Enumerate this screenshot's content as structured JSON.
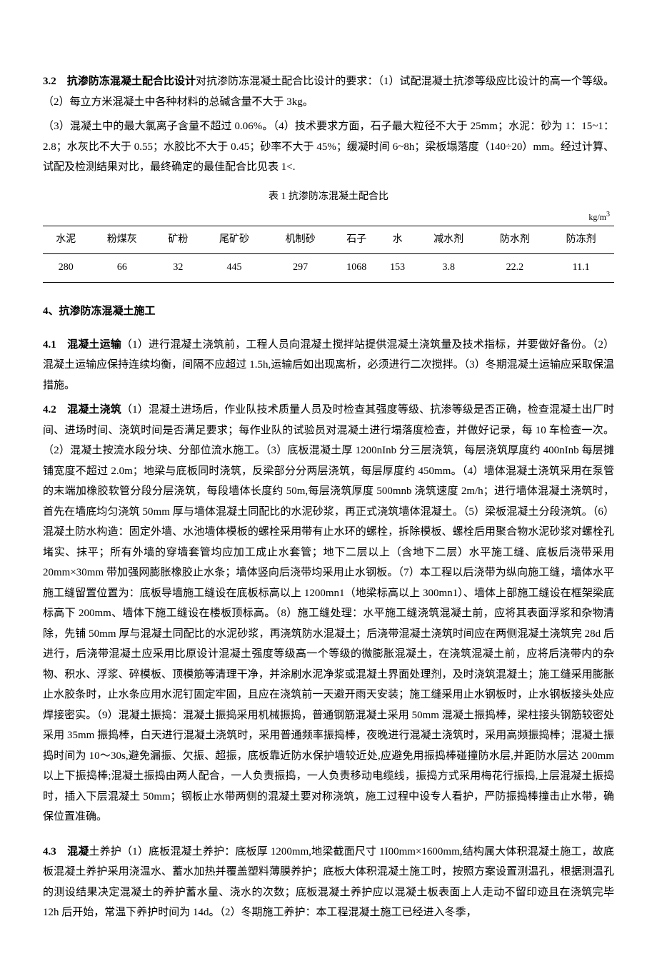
{
  "s32": {
    "lead": "3.2　抗渗防冻混凝土配合比设计",
    "body": "对抗渗防冻混凝土配合比设计的要求：（1）试配混凝土抗渗等级应比设计的高一个等级。（2）每立方米混凝土中各种材料的总碱含量不大于 3kg。",
    "line2": "（3）混凝土中的最大氯离子含量不超过 0.06%。（4）技术要求方面，石子最大粒径不大于 25mm；水泥：砂为 1：15~1：2.8；水灰比不大于 0.55；水胶比不大于 0.45；砂率不大于 45%；缓凝时间 6~8h；梁板塌落度（140÷20）mm。经过计算、试配及检测结果对比，最终确定的最佳配合比见表 1<."
  },
  "table": {
    "caption": "表 1 抗渗防冻混凝土配合比",
    "unit_prefix": "kg/m",
    "unit_sup": "3",
    "columns": [
      "水泥",
      "粉煤灰",
      "矿粉",
      "尾矿砂",
      "机制砂",
      "石子",
      "水",
      "减水剂",
      "防水剂",
      "防冻剂"
    ],
    "rows": [
      [
        "280",
        "66",
        "32",
        "445",
        "297",
        "1068",
        "153",
        "3.8",
        "22.2",
        "11.1"
      ]
    ],
    "caption_fontsize": 14,
    "cell_fontsize": 14,
    "border_color": "#000000",
    "background_color": "#ffffff"
  },
  "s4_title": "4、抗渗防冻混凝土施工",
  "s41": {
    "lead": "4.1　混凝土运输",
    "body": "（1）进行混凝土浇筑前，工程人员向混凝土搅拌站提供混凝土浇筑量及技术指标，并要做好备份。（2）混凝土运输应保持连续均衡，间隔不应超过 1.5h,运输后如出现离析，必须进行二次搅拌。（3）冬期混凝土运输应采取保温措施。"
  },
  "s42": {
    "lead": "4.2　混凝土浇筑",
    "body": "（1）混凝土进场后，作业队技术质量人员及时检查其强度等级、抗渗等级是否正确，检查混凝土出厂时间、进场时间、浇筑时间是否满足要求；每作业队的试验员对混凝土进行塌落度检查，并做好记录，每 10 车检查一次。（2）混凝土按流水段分块、分部位流水施工。（3）底板混凝土厚 1200nInb 分三层浇筑，每层浇筑厚度约 400nInb 每层摊铺宽度不超过 2.0m；地梁与底板同时浇筑，反梁部分分两层浇筑，每层厚度约 450mm。（4）墙体混凝土浇筑采用在泵管的末端加橡胶软管分段分层浇筑，每段墙体长度约 50m,每层浇筑厚度 500mnb 浇筑速度 2m/h；进行墙体混凝土浇筑时，首先在墙底均匀浇筑 50mm 厚与墙体混凝土同配比的水泥砂浆，再正式浇筑墙体混凝土。（5）梁板混凝土分段浇筑。（6）混凝土防水构造：固定外墙、水池墙体模板的螺栓采用带有止水环的螺栓，拆除模板、螺栓后用聚合物水泥砂浆对螺栓孔堵实、抹平；所有外墙的穿墙套管均应加工成止水套管；地下二层以上（含地下二层）水平施工缝、底板后浇带采用 20mm×30mm 带加强网膨胀橡胶止水条；墙体竖向后浇带均采用止水钢板。（7）本工程以后浇带为纵向施工缝，墙体水平施工缝留置位置为：底板导墙施工缝设在底板标高以上 1200mn1（地梁标高以上 300mn1）、墙体上部施工缝设在框架梁底标高下 200mm、墙体下施工缝设在楼板顶标高。（8）施工缝处理：水平施工缝浇筑混凝土前，应将其表面浮浆和杂物清除，先铺 50mm 厚与混凝土同配比的水泥砂浆，再浇筑防水混凝土；后浇带混凝土浇筑时间应在两侧混凝土浇筑完 28d 后进行，后浇带混凝土应采用比原设计混凝土强度等级高一个等级的微膨胀混凝土，在浇筑混凝土前，应将后浇带内的杂物、积水、浮浆、碎模板、顶模筋等清理干净，并涂刷水泥净浆或混凝土界面处理剂，及时浇筑混凝土；施工缝采用膨胀止水胶条时，止水条应用水泥钉固定牢固，且应在浇筑前一天避开雨天安装；施工缝采用止水钢板时，止水钢板接头处应焊接密实。（9）混凝土振捣：混凝土振捣采用机械振捣，普通钢筋混凝土采用 50mm 混凝土振捣棒，梁柱接头钢筋较密处采用 35mm 振捣棒，白天进行混凝土浇筑时，采用普通频率振捣棒，夜晚进行混凝土浇筑时，采用高频振捣棒；混凝土振捣时间为 10～30s,避免漏振、欠振、超振，底板靠近防水保护墙较近处,应避免用振捣棒碰撞防水层,并距防水层达 200mm 以上下振捣棒;混凝土振捣由两人配合，一人负责振捣，一人负责移动电缆线，振捣方式采用梅花行振捣,上层混凝土振捣时，插入下层混凝土 50mm；钢板止水带两侧的混凝土要对称浇筑，施工过程中设专人看护，严防振捣棒撞击止水带，确保位置准确。"
  },
  "s43": {
    "lead": "4.3　混凝",
    "body": "土养护（1）底板混凝土养护：底板厚 1200mm,地梁截面尺寸 1I00mm×1600mm,结构属大体积混凝土施工，故底板混凝土养护采用浇温水、蓄水加热并覆盖塑料薄膜养护；底板大体积混凝土施工时，按照方案设置测温孔，根据测温孔的测设结果决定混凝土的养护蓄水量、浇水的次数；底板混凝土养护应以混凝土板表面上人走动不留印迹且在浇筑完毕 12h 后开始，常温下养护时间为 14d。（2）冬期施工养护：本工程混凝土施工已经进入冬季，"
  },
  "style": {
    "background_color": "#ffffff",
    "text_color": "#000000",
    "font_family": "SimSun",
    "body_fontsize": 15,
    "line_height": 1.9
  }
}
